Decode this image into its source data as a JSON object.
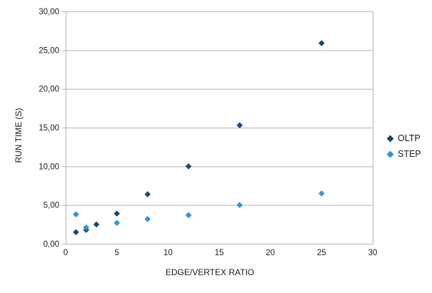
{
  "chart_data": {
    "type": "scatter",
    "title": "",
    "xlabel": "EDGE/VERTEX RATIO",
    "ylabel": "RUN TIME (S)",
    "xlim": [
      0,
      30
    ],
    "ylim": [
      0,
      30
    ],
    "x_ticks": [
      0,
      5,
      10,
      15,
      20,
      25,
      30
    ],
    "x_tick_labels": [
      "0",
      "5",
      "10",
      "15",
      "20",
      "25",
      "30"
    ],
    "y_ticks": [
      0,
      5,
      10,
      15,
      20,
      25,
      30
    ],
    "y_tick_labels": [
      "0,00",
      "5,00",
      "10,00",
      "15,00",
      "20,00",
      "25,00",
      "30,00"
    ],
    "grid": "horizontal-only",
    "grid_color": "#b3b3b3",
    "axis_color": "#b3b3b3",
    "text_color": "#1a1a1a",
    "legend_position": "right-middle",
    "marker": "diamond",
    "series": [
      {
        "name": "OLTP",
        "color": "#1B4772",
        "points": [
          [
            1,
            1.5
          ],
          [
            2,
            1.8
          ],
          [
            3,
            2.5
          ],
          [
            5,
            3.9
          ],
          [
            8,
            6.4
          ],
          [
            12,
            10.0
          ],
          [
            17,
            15.3
          ],
          [
            25,
            25.9
          ]
        ]
      },
      {
        "name": "STEP",
        "color": "#2B96D5",
        "points": [
          [
            1,
            3.8
          ],
          [
            2,
            2.1
          ],
          [
            5,
            2.7
          ],
          [
            8,
            3.2
          ],
          [
            12,
            3.7
          ],
          [
            17,
            5.0
          ],
          [
            25,
            6.5
          ]
        ]
      }
    ]
  }
}
